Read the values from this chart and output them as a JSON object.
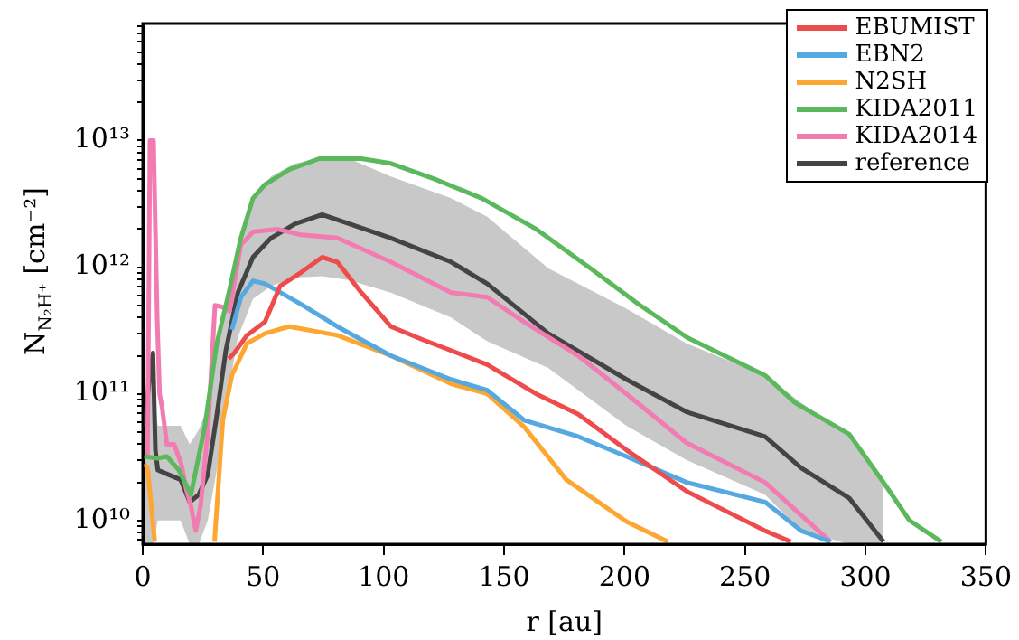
{
  "chart_data": {
    "type": "line",
    "xlabel": "r [au]",
    "ylabel": "N$_{N₂H⁺}$ [cm⁻²]",
    "log": "y",
    "grid": false,
    "legend": "top right",
    "marker": "none",
    "line_style": "solid",
    "xlim": [
      0,
      350
    ],
    "xticks": [
      0,
      50,
      100,
      150,
      200,
      250,
      300,
      350
    ],
    "ylim": [
      6500000000.0,
      84000000000000.0
    ],
    "yticks": [
      {
        "value": 7000000000.0,
        "label": null
      },
      {
        "value": 8000000000.0,
        "label": null
      },
      {
        "value": 9000000000.0,
        "label": null
      },
      {
        "value": 10000000000.0,
        "label": "10¹⁰"
      },
      {
        "value": 20000000000.0,
        "label": null
      },
      {
        "value": 30000000000.0,
        "label": null
      },
      {
        "value": 40000000000.0,
        "label": null
      },
      {
        "value": 50000000000.0,
        "label": null
      },
      {
        "value": 60000000000.0,
        "label": null
      },
      {
        "value": 70000000000.0,
        "label": null
      },
      {
        "value": 80000000000.0,
        "label": null
      },
      {
        "value": 90000000000.0,
        "label": null
      },
      {
        "value": 100000000000.0,
        "label": "10¹¹"
      },
      {
        "value": 200000000000.0,
        "label": null
      },
      {
        "value": 300000000000.0,
        "label": null
      },
      {
        "value": 400000000000.0,
        "label": null
      },
      {
        "value": 500000000000.0,
        "label": null
      },
      {
        "value": 600000000000.0,
        "label": null
      },
      {
        "value": 700000000000.0,
        "label": null
      },
      {
        "value": 800000000000.0,
        "label": null
      },
      {
        "value": 900000000000.0,
        "label": null
      },
      {
        "value": 1000000000000.0,
        "label": "10¹²"
      },
      {
        "value": 2000000000000.0,
        "label": null
      },
      {
        "value": 3000000000000.0,
        "label": null
      },
      {
        "value": 4000000000000.0,
        "label": null
      },
      {
        "value": 5000000000000.0,
        "label": null
      },
      {
        "value": 6000000000000.0,
        "label": null
      },
      {
        "value": 7000000000000.0,
        "label": null
      },
      {
        "value": 8000000000000.0,
        "label": null
      },
      {
        "value": 9000000000000.0,
        "label": null
      },
      {
        "value": 10000000000000.0,
        "label": "10¹³"
      },
      {
        "value": 20000000000000.0,
        "label": null
      },
      {
        "value": 30000000000000.0,
        "label": null
      },
      {
        "value": 40000000000000.0,
        "label": null
      },
      {
        "value": 50000000000000.0,
        "label": null
      },
      {
        "value": 60000000000000.0,
        "label": null
      },
      {
        "value": 70000000000000.0,
        "label": null
      },
      {
        "value": 80000000000000.0,
        "label": null
      }
    ],
    "series": [
      {
        "name": "EBUMIST",
        "color": "#ee4c4c",
        "x": [
          35.75,
          38,
          43.25,
          50.75,
          57,
          65.75,
          74.5,
          80.75,
          90.75,
          103,
          115.75,
          128,
          143,
          163.3,
          180.8,
          200.8,
          225.8,
          258.3,
          269
        ],
        "values": [
          190000000000.0,
          210000000000.0,
          290000000000.0,
          370000000000.0,
          710000000000.0,
          910000000000.0,
          1200000000000.0,
          1100000000000.0,
          630000000000.0,
          340000000000.0,
          270000000000.0,
          220000000000.0,
          170000000000.0,
          100000000000.0,
          69000000000.0,
          36000000000.0,
          17000000000.0,
          8300000000.0,
          6800000000.0
        ]
      },
      {
        "name": "EBN2",
        "color": "#55a8e0",
        "x": [
          37,
          40.75,
          45.75,
          50.75,
          65.75,
          80.75,
          103,
          128,
          143,
          158.3,
          180.8,
          200.8,
          225.8,
          258.3,
          273.3,
          285.5
        ],
        "values": [
          320000000000.0,
          580000000000.0,
          780000000000.0,
          740000000000.0,
          510000000000.0,
          340000000000.0,
          200000000000.0,
          130000000000.0,
          107000000000.0,
          62000000000.0,
          46000000000.0,
          32000000000.0,
          20000000000.0,
          14000000000.0,
          8300000000.0,
          6800000000.0
        ]
      },
      {
        "name": "N2SH",
        "color": "#fda631",
        "x": [
          0.5,
          2,
          5,
          17,
          29.8,
          33.25,
          37,
          43.25,
          50.75,
          60.75,
          80.75,
          103,
          128,
          143,
          158.3,
          175.8,
          200.8,
          218
        ],
        "values": [
          28000000000.0,
          26000000000.0,
          6800000000.0,
          null,
          6800000000.0,
          62000000000.0,
          140000000000.0,
          250000000000.0,
          300000000000.0,
          340000000000.0,
          290000000000.0,
          200000000000.0,
          120000000000.0,
          100000000000.0,
          55000000000.0,
          21000000000.0,
          9800000000.0,
          6800000000.0
        ]
      },
      {
        "name": "KIDA2011",
        "color": "#5cb85c",
        "x": [
          0.5,
          6,
          10,
          15,
          20,
          25.75,
          30.75,
          35.75,
          40.75,
          45.75,
          50.75,
          60.75,
          73.25,
          90.75,
          103,
          120.75,
          140.75,
          163.3,
          185.8,
          205.8,
          225.8,
          258.3,
          270.8,
          293.3,
          308.3,
          318.3,
          331.5
        ],
        "values": [
          32000000000.0,
          31000000000.0,
          32000000000.0,
          25000000000.0,
          16000000000.0,
          55000000000.0,
          250000000000.0,
          630000000000.0,
          1700000000000.0,
          3500000000000.0,
          4500000000000.0,
          5900000000000.0,
          7200000000000.0,
          7200000000000.0,
          6600000000000.0,
          5000000000000.0,
          3500000000000.0,
          2000000000000.0,
          980000000000.0,
          510000000000.0,
          280000000000.0,
          140000000000.0,
          85000000000.0,
          48000000000.0,
          19000000000.0,
          10000000000.0,
          6800000000.0
        ]
      },
      {
        "name": "KIDA2014",
        "color": "#f27cb2",
        "x": [
          2,
          3,
          4.5,
          6,
          7,
          8,
          10,
          13,
          16,
          18,
          20,
          22,
          24,
          27,
          30,
          34,
          36,
          40.75,
          45.75,
          55.75,
          65.75,
          80.75,
          103,
          128,
          143,
          158.3,
          180.8,
          200.8,
          225.8,
          258.3,
          275.8,
          285.5
        ],
        "values": [
          32000000000.0,
          10000000000000.0,
          10000000000000.0,
          400000000000.0,
          100000000000.0,
          79000000000.0,
          40000000000.0,
          40000000000.0,
          28000000000.0,
          18000000000.0,
          13000000000.0,
          8300000000.0,
          13000000000.0,
          50000000000.0,
          500000000000.0,
          480000000000.0,
          450000000000.0,
          1500000000000.0,
          1900000000000.0,
          2000000000000.0,
          1800000000000.0,
          1700000000000.0,
          1100000000000.0,
          630000000000.0,
          580000000000.0,
          370000000000.0,
          200000000000.0,
          100000000000.0,
          41000000000.0,
          20000000000.0,
          10000000000.0,
          6800000000.0
        ]
      },
      {
        "name": "reference",
        "color": "#444444",
        "x": [
          0.75,
          3.25,
          4.25,
          5.25,
          6.25,
          10.75,
          15.75,
          19.5,
          23.25,
          27,
          30.75,
          34.5,
          39.5,
          45.75,
          53.25,
          63.25,
          74.5,
          85.75,
          103,
          128,
          143,
          168.3,
          200.8,
          225.8,
          258.3,
          273.3,
          293.3,
          307.5
        ],
        "values": [
          55000000000.0,
          160000000000.0,
          210000000000.0,
          36000000000.0,
          25000000000.0,
          23000000000.0,
          21000000000.0,
          14000000000.0,
          16000000000.0,
          23000000000.0,
          68000000000.0,
          220000000000.0,
          630000000000.0,
          1200000000000.0,
          1700000000000.0,
          2200000000000.0,
          2600000000000.0,
          2200000000000.0,
          1700000000000.0,
          1100000000000.0,
          740000000000.0,
          300000000000.0,
          130000000000.0,
          72000000000.0,
          46000000000.0,
          26000000000.0,
          15000000000.0,
          6800000000.0
        ],
        "lower": [
          6500000000.0,
          6500000000.0,
          6500000000.0,
          7900000000.0,
          10000000000.0,
          10000000000.0,
          10000000000.0,
          6500000000.0,
          6500000000.0,
          10000000000.0,
          25000000000.0,
          79000000000.0,
          280000000000.0,
          560000000000.0,
          710000000000.0,
          830000000000.0,
          850000000000.0,
          790000000000.0,
          630000000000.0,
          400000000000.0,
          260000000000.0,
          160000000000.0,
          56000000000.0,
          30000000000.0,
          16000000000.0,
          8300000000.0,
          6500000000.0,
          6500000000.0
        ],
        "upper": [
          100000000000.0,
          200000000000.0,
          220000000000.0,
          79000000000.0,
          56000000000.0,
          56000000000.0,
          56000000000.0,
          40000000000.0,
          52000000000.0,
          79000000000.0,
          200000000000.0,
          560000000000.0,
          1600000000000.0,
          3500000000000.0,
          5200000000000.0,
          6600000000000.0,
          7200000000000.0,
          7200000000000.0,
          5200000000000.0,
          3500000000000.0,
          2500000000000.0,
          980000000000.0,
          470000000000.0,
          250000000000.0,
          140000000000.0,
          85000000000.0,
          46000000000.0,
          19000000000.0
        ]
      }
    ]
  }
}
